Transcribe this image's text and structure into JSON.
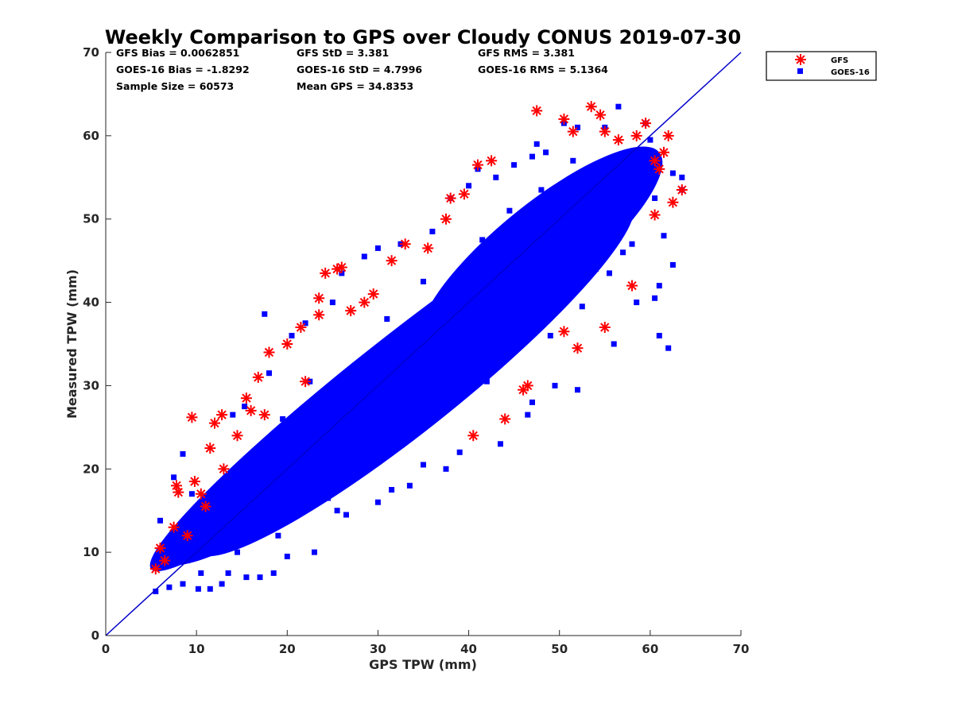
{
  "chart_data": {
    "type": "scatter",
    "title": "Weekly Comparison to GPS over Cloudy CONUS 2019-07-30",
    "xlabel": "GPS TPW (mm)",
    "ylabel": "Measured TPW (mm)",
    "xlim": [
      0,
      70
    ],
    "ylim": [
      0,
      70
    ],
    "xticks": [
      "0",
      "10",
      "20",
      "30",
      "40",
      "50",
      "60",
      "70"
    ],
    "yticks": [
      "0",
      "10",
      "20",
      "30",
      "40",
      "50",
      "60",
      "70"
    ],
    "grid": false,
    "legend_position": "top-right, outside plot",
    "stats": [
      "GFS Bias = 0.0062851",
      "GFS StD = 3.381",
      "GFS RMS = 3.381",
      "GOES-16 Bias = -1.8292",
      "GOES-16 StD = 4.7996",
      "GOES-16 RMS = 5.1364",
      "Sample Size = 60573",
      "Mean GPS = 34.8353"
    ],
    "reference_line": {
      "name": "1:1 line",
      "x": [
        0,
        70
      ],
      "y": [
        0,
        70
      ],
      "color": "#0000cc"
    },
    "series": [
      {
        "name": "GOES-16",
        "marker": "square",
        "color": "#0000ff",
        "points": [
          [
            5.5,
            5.3
          ],
          [
            7.0,
            5.8
          ],
          [
            8.5,
            6.2
          ],
          [
            10.2,
            5.6
          ],
          [
            11.5,
            5.6
          ],
          [
            12.8,
            6.2
          ],
          [
            13.5,
            7.5
          ],
          [
            15.5,
            7.0
          ],
          [
            6.0,
            13.8
          ],
          [
            7.5,
            19.0
          ],
          [
            8.5,
            21.8
          ],
          [
            9.5,
            17.0
          ],
          [
            14.0,
            26.5
          ],
          [
            15.3,
            27.5
          ],
          [
            17.5,
            38.6
          ],
          [
            18.0,
            31.5
          ],
          [
            20.5,
            36.0
          ],
          [
            22.0,
            37.5
          ],
          [
            25.0,
            40.0
          ],
          [
            26.0,
            43.5
          ],
          [
            28.5,
            45.5
          ],
          [
            30.0,
            46.5
          ],
          [
            32.5,
            47.0
          ],
          [
            36.0,
            48.5
          ],
          [
            38.0,
            52.5
          ],
          [
            40.0,
            54.0
          ],
          [
            41.0,
            56.0
          ],
          [
            43.0,
            55.0
          ],
          [
            45.0,
            56.5
          ],
          [
            47.0,
            57.5
          ],
          [
            47.5,
            59.0
          ],
          [
            48.5,
            58.0
          ],
          [
            50.5,
            61.5
          ],
          [
            52.0,
            61.0
          ],
          [
            55.0,
            61.0
          ],
          [
            56.5,
            63.5
          ],
          [
            59.5,
            61.5
          ],
          [
            60.0,
            59.5
          ],
          [
            62.5,
            55.5
          ],
          [
            63.5,
            55.0
          ],
          [
            62.5,
            44.5
          ],
          [
            61.0,
            42.0
          ],
          [
            60.5,
            40.5
          ],
          [
            58.5,
            40.0
          ],
          [
            56.0,
            35.0
          ],
          [
            61.0,
            36.0
          ],
          [
            62.0,
            34.5
          ],
          [
            52.0,
            29.5
          ],
          [
            49.5,
            30.0
          ],
          [
            47.0,
            28.0
          ],
          [
            46.5,
            26.5
          ],
          [
            43.5,
            23.0
          ],
          [
            39.0,
            22.0
          ],
          [
            37.5,
            20.0
          ],
          [
            35.0,
            20.5
          ],
          [
            33.5,
            18.0
          ],
          [
            31.5,
            17.5
          ],
          [
            30.0,
            16.0
          ],
          [
            26.5,
            14.5
          ],
          [
            25.5,
            15.0
          ],
          [
            23.0,
            10.0
          ],
          [
            20.0,
            9.5
          ],
          [
            18.5,
            7.5
          ],
          [
            17.0,
            7.0
          ],
          [
            46.0,
            46.0
          ],
          [
            50.0,
            49.5
          ],
          [
            53.0,
            53.0
          ],
          [
            57.0,
            56.5
          ],
          [
            44.0,
            43.0
          ],
          [
            40.5,
            40.5
          ],
          [
            36.0,
            35.0
          ],
          [
            32.0,
            31.0
          ],
          [
            28.0,
            27.5
          ],
          [
            24.0,
            23.0
          ],
          [
            20.0,
            19.5
          ],
          [
            16.0,
            15.0
          ],
          [
            12.0,
            11.0
          ],
          [
            9.0,
            9.0
          ],
          [
            63.5,
            53.5
          ],
          [
            61.5,
            48.0
          ],
          [
            57.0,
            46.0
          ],
          [
            55.5,
            43.5
          ],
          [
            52.5,
            39.5
          ],
          [
            49.0,
            36.0
          ],
          [
            42.0,
            30.5
          ],
          [
            38.5,
            28.0
          ],
          [
            34.0,
            24.5
          ],
          [
            29.5,
            21.0
          ],
          [
            24.5,
            16.5
          ],
          [
            19.0,
            12.0
          ],
          [
            14.5,
            10.0
          ],
          [
            10.5,
            7.5
          ],
          [
            58.0,
            47.0
          ],
          [
            54.0,
            44.0
          ],
          [
            60.5,
            52.5
          ],
          [
            27.0,
            32.0
          ],
          [
            31.0,
            38.0
          ],
          [
            22.5,
            30.5
          ],
          [
            19.5,
            26.0
          ],
          [
            35.0,
            42.5
          ],
          [
            41.5,
            47.5
          ],
          [
            44.5,
            51.0
          ],
          [
            48.0,
            53.5
          ],
          [
            51.5,
            57.0
          ]
        ]
      },
      {
        "name": "GFS",
        "marker": "asterisk",
        "color": "#ff0000",
        "points": [
          [
            5.5,
            8.0
          ],
          [
            6.0,
            10.5
          ],
          [
            7.5,
            13.0
          ],
          [
            7.8,
            18.0
          ],
          [
            8.0,
            17.2
          ],
          [
            9.5,
            26.2
          ],
          [
            9.8,
            18.5
          ],
          [
            10.5,
            17.0
          ],
          [
            11.5,
            22.5
          ],
          [
            12.0,
            25.5
          ],
          [
            12.8,
            26.5
          ],
          [
            14.5,
            24.0
          ],
          [
            15.5,
            28.5
          ],
          [
            16.0,
            27.0
          ],
          [
            16.8,
            31.0
          ],
          [
            18.0,
            34.0
          ],
          [
            20.0,
            35.0
          ],
          [
            21.5,
            37.0
          ],
          [
            23.5,
            38.5
          ],
          [
            23.5,
            40.5
          ],
          [
            24.2,
            43.5
          ],
          [
            25.5,
            44.0
          ],
          [
            26.0,
            44.2
          ],
          [
            27.0,
            39.0
          ],
          [
            28.5,
            40.0
          ],
          [
            29.5,
            41.0
          ],
          [
            33.0,
            47.0
          ],
          [
            35.5,
            46.5
          ],
          [
            37.5,
            50.0
          ],
          [
            38.0,
            52.5
          ],
          [
            39.5,
            53.0
          ],
          [
            41.0,
            56.5
          ],
          [
            42.5,
            57.0
          ],
          [
            47.5,
            63.0
          ],
          [
            50.5,
            62.0
          ],
          [
            51.5,
            60.5
          ],
          [
            53.5,
            63.5
          ],
          [
            54.5,
            62.5
          ],
          [
            55.0,
            60.5
          ],
          [
            56.5,
            59.5
          ],
          [
            58.5,
            60.0
          ],
          [
            59.5,
            61.5
          ],
          [
            60.5,
            57.0
          ],
          [
            61.0,
            56.0
          ],
          [
            61.5,
            58.0
          ],
          [
            62.0,
            60.0
          ],
          [
            62.5,
            52.0
          ],
          [
            63.5,
            53.5
          ],
          [
            60.5,
            50.5
          ],
          [
            58.0,
            42.0
          ],
          [
            55.0,
            37.0
          ],
          [
            52.0,
            34.5
          ],
          [
            50.5,
            36.5
          ],
          [
            46.5,
            30.0
          ],
          [
            46.0,
            29.5
          ],
          [
            44.0,
            26.0
          ],
          [
            40.5,
            24.0
          ],
          [
            31.5,
            45.0
          ],
          [
            22.0,
            30.5
          ],
          [
            17.5,
            26.5
          ],
          [
            13.0,
            20.0
          ],
          [
            11.0,
            15.5
          ],
          [
            9.0,
            12.0
          ],
          [
            6.5,
            9.0
          ]
        ]
      }
    ]
  }
}
